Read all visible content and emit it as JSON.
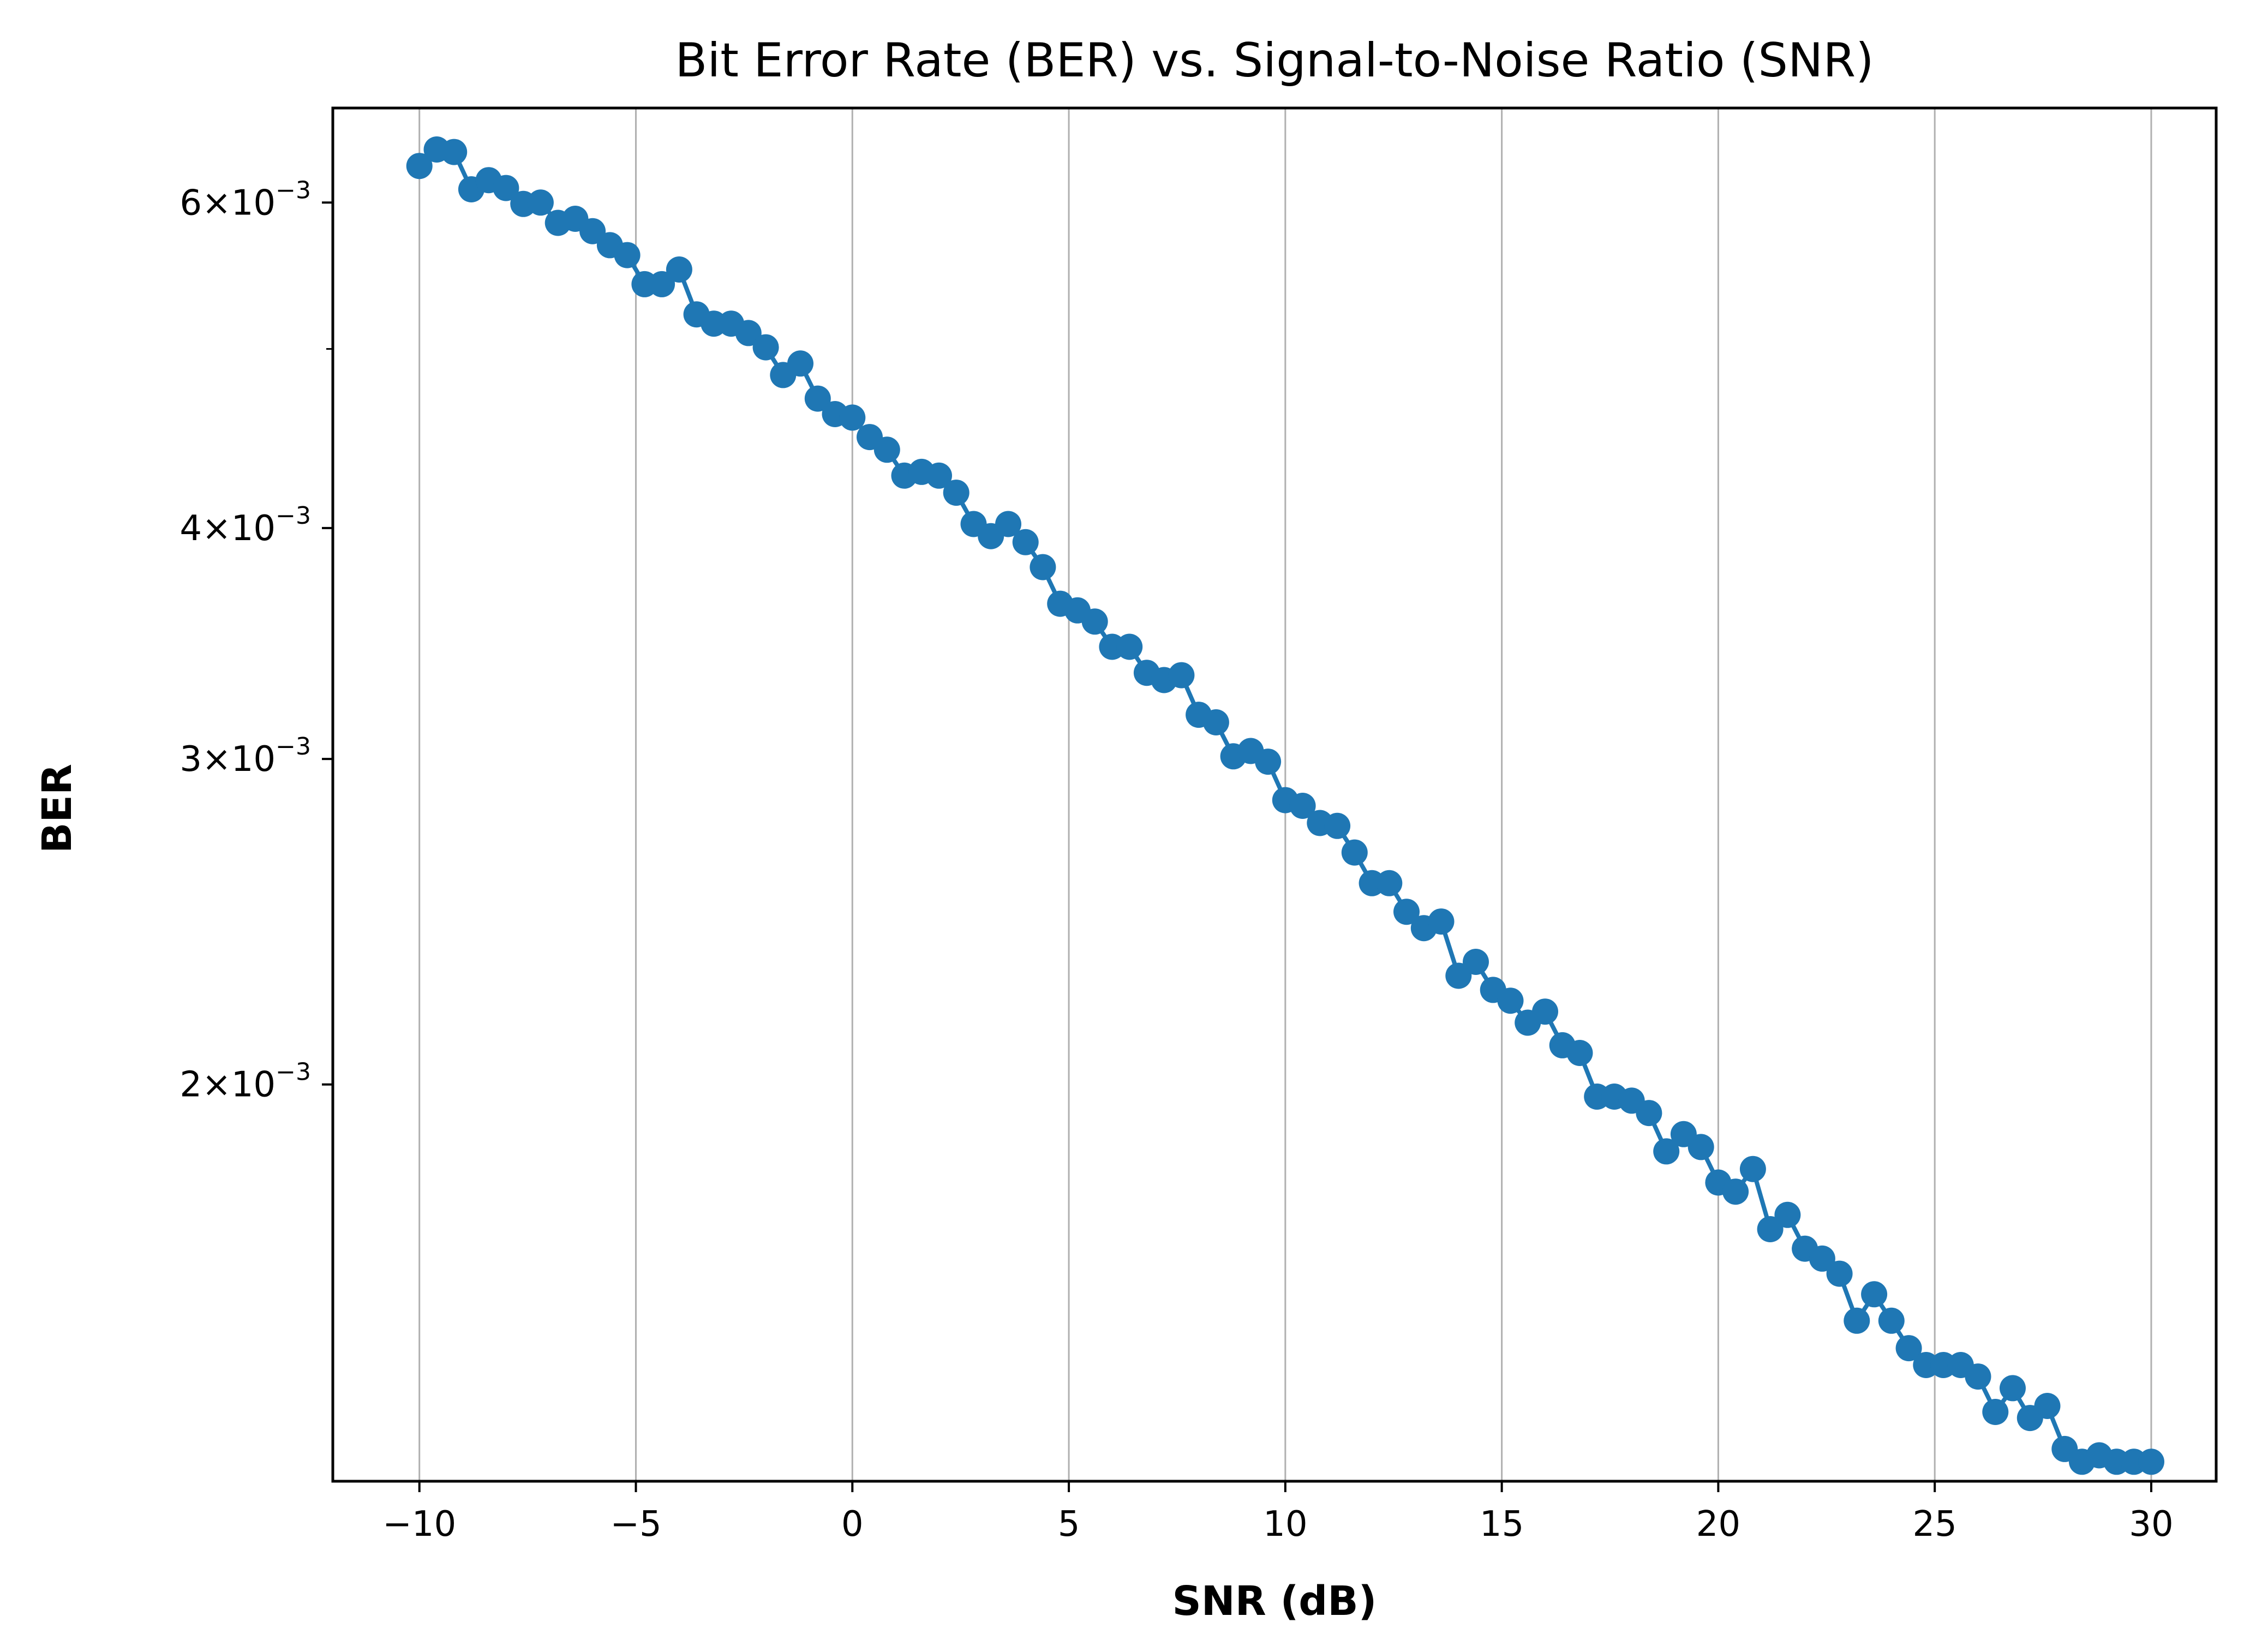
{
  "chart_data": {
    "type": "line",
    "title": "Bit Error Rate (BER) vs. Signal-to-Noise Ratio (SNR)",
    "xlabel": "SNR (dB)",
    "ylabel": "BER",
    "x_scale": "linear",
    "y_scale": "log",
    "xlim": [
      -12,
      31.5
    ],
    "ylim": [
      0.00122,
      0.00675
    ],
    "x_ticks": [
      -10,
      -5,
      0,
      5,
      10,
      15,
      20,
      25,
      30
    ],
    "x_tick_labels": [
      "−10",
      "−5",
      "0",
      "5",
      "10",
      "15",
      "20",
      "25",
      "30"
    ],
    "y_ticks": [
      {
        "value": 0.006,
        "mantissa": "6",
        "exponent": "−3"
      },
      {
        "value": 0.004,
        "mantissa": "4",
        "exponent": "−3"
      },
      {
        "value": 0.003,
        "mantissa": "3",
        "exponent": "−3"
      },
      {
        "value": 0.002,
        "mantissa": "2",
        "exponent": "−3"
      }
    ],
    "y_minor_ticks": [
      0.005
    ],
    "grid": {
      "x": true,
      "y": false
    },
    "marker": "circle",
    "color": "#1f77b4",
    "series": [
      {
        "x": [
          -10.0,
          -9.6,
          -9.2,
          -8.8,
          -8.4,
          -8.0,
          -7.6,
          -7.2,
          -6.8,
          -6.4,
          -6.0,
          -5.6,
          -5.2,
          -4.8,
          -4.4,
          -4.0,
          -3.6,
          -3.2,
          -2.8,
          -2.4,
          -2.0,
          -1.6,
          -1.2,
          -0.8,
          -0.4,
          0.0,
          0.4,
          0.8,
          1.2,
          1.6,
          2.0,
          2.4,
          2.8,
          3.2,
          3.6,
          4.0,
          4.4,
          4.8,
          5.2,
          5.6,
          6.0,
          6.4,
          6.8,
          7.2,
          7.6,
          8.0,
          8.4,
          8.8,
          9.2,
          9.6,
          10.0,
          10.4,
          10.8,
          11.2,
          11.6,
          12.0,
          12.4,
          12.8,
          13.2,
          13.6,
          14.0,
          14.4,
          14.8,
          15.2,
          15.6,
          16.0,
          16.4,
          16.8,
          17.2,
          17.6,
          18.0,
          18.4,
          18.8,
          19.2,
          19.6,
          20.0,
          20.4,
          20.8,
          21.2,
          21.6,
          22.0,
          22.4,
          22.8,
          23.2,
          23.6,
          24.0,
          24.4,
          24.8,
          25.2,
          25.6,
          26.0,
          26.4,
          26.8,
          27.2,
          27.6,
          28.0,
          28.4,
          28.8,
          29.2,
          29.6,
          30.0
        ],
        "y": [
          0.00628,
          0.00641,
          0.00639,
          0.0061,
          0.00617,
          0.00611,
          0.00599,
          0.006,
          0.00585,
          0.00588,
          0.00579,
          0.00569,
          0.00562,
          0.00542,
          0.00542,
          0.00552,
          0.00522,
          0.00516,
          0.00516,
          0.0051,
          0.00501,
          0.00484,
          0.00491,
          0.0047,
          0.00461,
          0.00459,
          0.00448,
          0.00441,
          0.00427,
          0.00429,
          0.00427,
          0.00418,
          0.00402,
          0.00396,
          0.00402,
          0.00393,
          0.00381,
          0.00364,
          0.00361,
          0.00356,
          0.00345,
          0.00345,
          0.00334,
          0.00331,
          0.00333,
          0.00317,
          0.00314,
          0.00301,
          0.00303,
          0.00299,
          0.00285,
          0.00283,
          0.00277,
          0.00276,
          0.00267,
          0.00257,
          0.00257,
          0.00248,
          0.00243,
          0.00245,
          0.00229,
          0.00233,
          0.00225,
          0.00222,
          0.00216,
          0.00219,
          0.0021,
          0.00208,
          0.00197,
          0.00197,
          0.00196,
          0.00193,
          0.00184,
          0.00188,
          0.00185,
          0.00177,
          0.00175,
          0.0018,
          0.00167,
          0.0017,
          0.00163,
          0.00161,
          0.00158,
          0.00149,
          0.00154,
          0.00149,
          0.00144,
          0.00141,
          0.00141,
          0.00141,
          0.00139,
          0.00133,
          0.00137,
          0.00132,
          0.00134,
          0.00127,
          0.00125,
          0.00126,
          0.00125,
          0.00125,
          0.00125
        ]
      }
    ]
  }
}
